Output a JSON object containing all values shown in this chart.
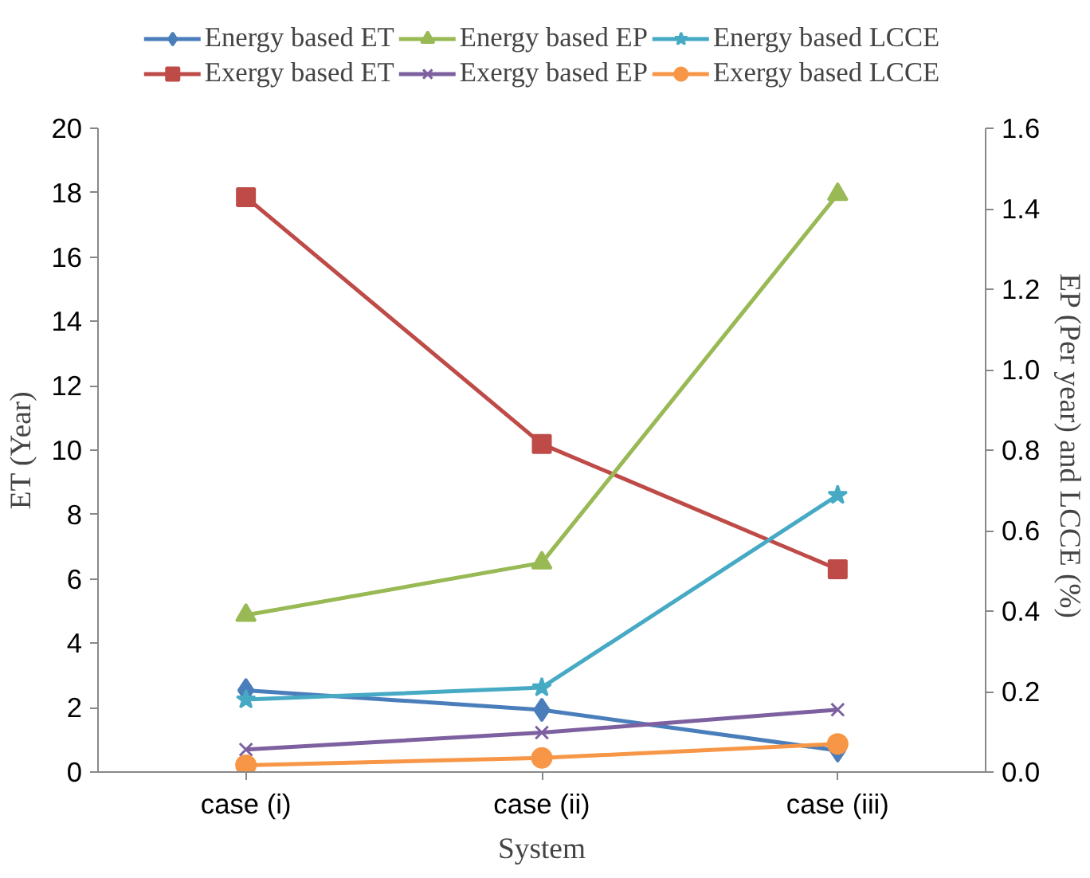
{
  "chart_data": {
    "type": "line",
    "xlabel": "System",
    "ylabel": "ET (Year)",
    "y2label": "EP (Per year)  and LCCE (%)",
    "categories": [
      "case (i)",
      "case (ii)",
      "case (iii)"
    ],
    "ylim": [
      0,
      20
    ],
    "yticks": [
      0,
      2,
      4,
      6,
      8,
      10,
      12,
      14,
      16,
      18,
      20
    ],
    "y2lim": [
      0,
      1.6
    ],
    "y2ticks": [
      {
        "value": 0,
        "label": "0.0"
      },
      0.2,
      0.4,
      0.6,
      0.8,
      {
        "value": 1,
        "label": "1.0"
      },
      1.2,
      1.4,
      1.6
    ],
    "grid": false,
    "legend": "top",
    "series": [
      {
        "name": "Energy based ET",
        "color": "#4a7ebb",
        "marker": "diamond",
        "values": [
          2.54,
          1.93,
          0.67
        ]
      },
      {
        "name": "Exergy based ET",
        "color": "#be4b48",
        "marker": "square",
        "values": [
          17.86,
          10.19,
          6.3
        ]
      },
      {
        "name": "Energy based EP",
        "color": "#98b954",
        "marker": "triangle",
        "axis": "y2",
        "values": [
          0.39,
          0.52,
          1.436
        ]
      },
      {
        "name": "Exergy based EP",
        "color": "#7d60a0",
        "marker": "cross",
        "axis": "y2",
        "values": [
          0.056,
          0.098,
          0.155
        ]
      },
      {
        "name": "Energy based LCCE",
        "color": "#46aac5",
        "marker": "star",
        "axis": "y2",
        "values": [
          0.18,
          0.21,
          0.688
        ]
      },
      {
        "name": "Exergy based LCCE",
        "color": "#f79646",
        "marker": "circle",
        "axis": "y2",
        "values": [
          0.017,
          0.035,
          0.07
        ]
      }
    ]
  }
}
